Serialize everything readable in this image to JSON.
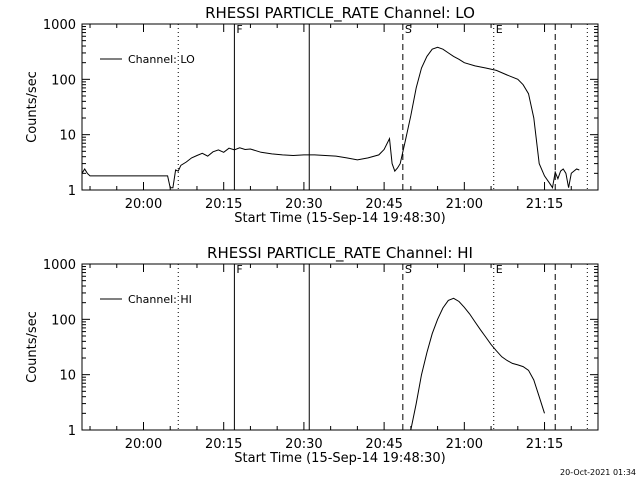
{
  "footer": {
    "timestamp": "20-Oct-2021 01:34"
  },
  "chart_data": [
    {
      "type": "line",
      "title": "RHESSI PARTICLE_RATE Channel: LO",
      "xlabel": "Start Time (15-Sep-14 19:48:30)",
      "ylabel": "Counts/sec",
      "y_scale": "log",
      "xlim": [
        "19:48:30",
        "21:25:00"
      ],
      "ylim": [
        1,
        1000
      ],
      "x_ticks": [
        "20:00",
        "20:15",
        "20:30",
        "20:45",
        "21:00",
        "21:15"
      ],
      "y_ticks": [
        "1",
        "10",
        "100",
        "1000"
      ],
      "legend": {
        "placement": "top-left",
        "entries": [
          "Channel: LO"
        ]
      },
      "grid": false,
      "markers": [
        {
          "time": "20:06:30",
          "style": "dotted",
          "label": ""
        },
        {
          "time": "20:17:00",
          "style": "solid",
          "label": "F"
        },
        {
          "time": "20:31:00",
          "style": "solid",
          "label": ""
        },
        {
          "time": "20:48:30",
          "style": "dashed",
          "label": "S"
        },
        {
          "time": "21:05:30",
          "style": "dotted",
          "label": "E"
        },
        {
          "time": "21:17:00",
          "style": "dashed",
          "label": ""
        },
        {
          "time": "21:23:00",
          "style": "dotted",
          "label": ""
        }
      ],
      "series": [
        {
          "name": "Channel: LO",
          "x": [
            "19:48:30",
            "19:49:00",
            "19:49:30",
            "19:50:00",
            "19:52:00",
            "19:55:00",
            "20:00:00",
            "20:04:00",
            "20:04:30",
            "20:05:00",
            "20:05:30",
            "20:06:00",
            "20:06:30",
            "20:07:00",
            "20:08:00",
            "20:09:00",
            "20:10:00",
            "20:11:00",
            "20:12:00",
            "20:13:00",
            "20:14:00",
            "20:15:00",
            "20:16:00",
            "20:17:00",
            "20:18:00",
            "20:19:00",
            "20:20:00",
            "20:22:00",
            "20:24:00",
            "20:26:00",
            "20:28:00",
            "20:30:00",
            "20:32:00",
            "20:34:00",
            "20:36:00",
            "20:38:00",
            "20:40:00",
            "20:42:00",
            "20:44:00",
            "20:45:00",
            "20:46:00",
            "20:46:30",
            "20:47:00",
            "20:47:30",
            "20:48:00",
            "20:49:00",
            "20:50:00",
            "20:51:00",
            "20:52:00",
            "20:53:00",
            "20:54:00",
            "20:55:00",
            "20:56:00",
            "20:57:00",
            "20:58:00",
            "20:59:00",
            "21:00:00",
            "21:02:00",
            "21:04:00",
            "21:06:00",
            "21:08:00",
            "21:10:00",
            "21:11:00",
            "21:12:00",
            "21:13:00",
            "21:14:00",
            "21:15:00",
            "21:16:00",
            "21:16:30",
            "21:17:00",
            "21:17:30",
            "21:18:00",
            "21:18:30",
            "21:19:00",
            "21:19:30",
            "21:20:00",
            "21:20:30",
            "21:21:00",
            "21:21:30"
          ],
          "y": [
            2,
            2.4,
            2,
            1.8,
            1.8,
            1.8,
            1.8,
            1.8,
            1.8,
            1.1,
            1.1,
            2.3,
            2.2,
            2.8,
            3.2,
            3.8,
            4.2,
            4.6,
            4.1,
            4.9,
            5.3,
            4.8,
            5.7,
            5.3,
            5.8,
            5.4,
            5.5,
            4.8,
            4.5,
            4.3,
            4.2,
            4.3,
            4.3,
            4.2,
            4.1,
            3.8,
            3.5,
            3.8,
            4.3,
            5.4,
            8.5,
            3,
            2.2,
            2.5,
            3,
            8,
            22,
            70,
            160,
            260,
            350,
            380,
            350,
            300,
            260,
            230,
            200,
            175,
            160,
            145,
            120,
            100,
            80,
            55,
            20,
            3,
            1.8,
            1.3,
            1.1,
            2.1,
            1.6,
            2.2,
            2.4,
            2,
            1.1,
            2,
            2.2,
            2.4,
            2.3
          ]
        }
      ]
    },
    {
      "type": "line",
      "title": "RHESSI PARTICLE_RATE Channel: HI",
      "xlabel": "Start Time (15-Sep-14 19:48:30)",
      "ylabel": "Counts/sec",
      "y_scale": "log",
      "xlim": [
        "19:48:30",
        "21:25:00"
      ],
      "ylim": [
        1,
        1000
      ],
      "x_ticks": [
        "20:00",
        "20:15",
        "20:30",
        "20:45",
        "21:00",
        "21:15"
      ],
      "y_ticks": [
        "1",
        "10",
        "100",
        "1000"
      ],
      "legend": {
        "placement": "top-left",
        "entries": [
          "Channel: HI"
        ]
      },
      "grid": false,
      "markers": [
        {
          "time": "20:06:30",
          "style": "dotted",
          "label": ""
        },
        {
          "time": "20:17:00",
          "style": "solid",
          "label": "F"
        },
        {
          "time": "20:31:00",
          "style": "solid",
          "label": ""
        },
        {
          "time": "20:48:30",
          "style": "dashed",
          "label": "S"
        },
        {
          "time": "21:05:30",
          "style": "dotted",
          "label": "E"
        },
        {
          "time": "21:17:00",
          "style": "dashed",
          "label": ""
        },
        {
          "time": "21:23:00",
          "style": "dotted",
          "label": ""
        }
      ],
      "series": [
        {
          "name": "Channel: HI",
          "x": [
            "20:50:00",
            "20:51:00",
            "20:52:00",
            "20:53:00",
            "20:54:00",
            "20:55:00",
            "20:56:00",
            "20:57:00",
            "20:58:00",
            "20:59:00",
            "21:00:00",
            "21:01:00",
            "21:02:00",
            "21:03:00",
            "21:04:00",
            "21:05:00",
            "21:06:00",
            "21:07:00",
            "21:08:00",
            "21:09:00",
            "21:10:00",
            "21:11:00",
            "21:12:00",
            "21:13:00",
            "21:14:00",
            "21:15:00"
          ],
          "y": [
            1,
            3,
            10,
            25,
            55,
            100,
            160,
            220,
            240,
            210,
            165,
            125,
            90,
            65,
            48,
            35,
            27,
            21,
            18,
            16,
            15,
            14,
            12,
            8,
            4,
            2
          ]
        }
      ]
    }
  ]
}
